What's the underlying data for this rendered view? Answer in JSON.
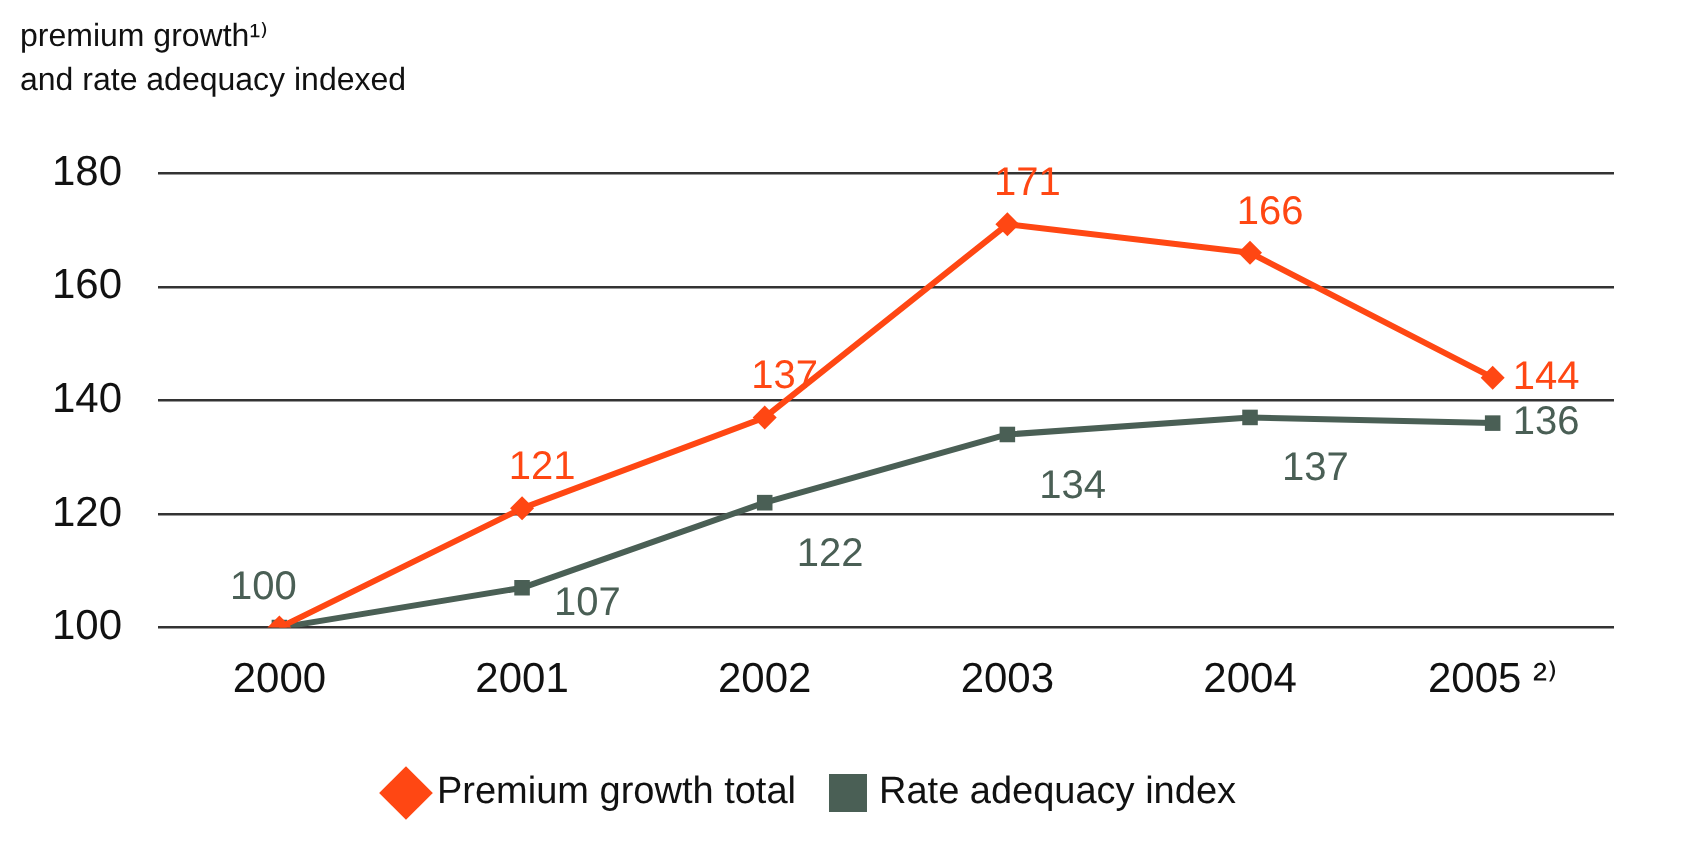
{
  "chart_data": {
    "type": "line",
    "ylabel": "premium growth¹⁾\nand rate adequacy indexed",
    "categories": [
      "2000",
      "2001",
      "2002",
      "2003",
      "2004",
      "2005 ²⁾"
    ],
    "series": [
      {
        "name": "Premium growth total",
        "color": "#ff4713",
        "marker": "diamond",
        "values": [
          100,
          121,
          137,
          171,
          166,
          144
        ],
        "value_labels": [
          null,
          "121",
          "137",
          "171",
          "166",
          "144"
        ]
      },
      {
        "name": "Rate adequacy index",
        "color": "#4a5f55",
        "marker": "square",
        "values": [
          100,
          107,
          122,
          134,
          137,
          136
        ],
        "value_labels": [
          "100",
          "107",
          "122",
          "134",
          "137",
          "136"
        ]
      }
    ],
    "ylim": [
      100,
      180
    ],
    "yticks": [
      100,
      120,
      140,
      160,
      180
    ],
    "grid": "y",
    "legend": "bottom",
    "line_style": "solid"
  }
}
